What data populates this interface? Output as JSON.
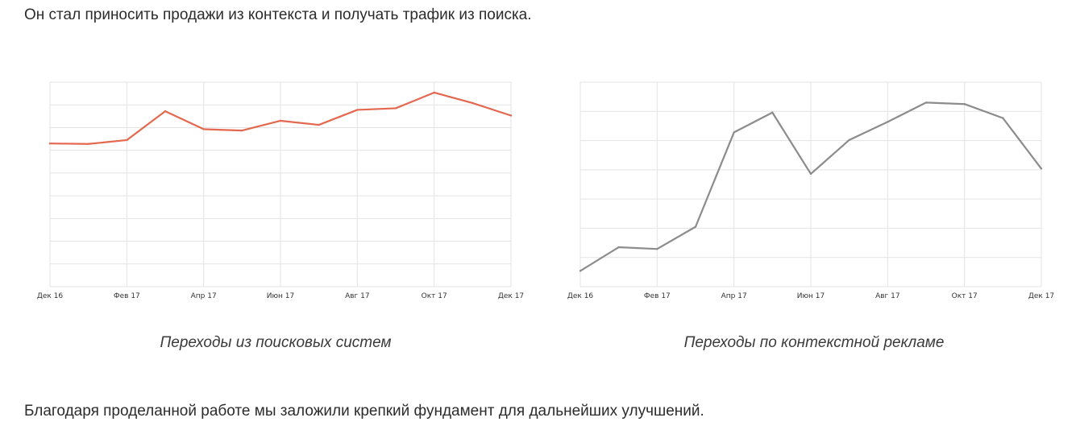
{
  "text": {
    "intro": "Он стал приносить продажи из контекста и получать трафик из поиска.",
    "outro": "Благодаря проделанной работе мы заложили крепкий фундамент для дальнейших улучшений."
  },
  "chart_data": [
    {
      "type": "line",
      "caption": "Переходы из поисковых систем",
      "x": [
        "Дек 16",
        "Янв 17",
        "Фев 17",
        "Мар 17",
        "Апр 17",
        "Май 17",
        "Июн 17",
        "Июл 17",
        "Авг 17",
        "Сен 17",
        "Окт 17",
        "Ноя 17",
        "Дек 17"
      ],
      "tick_labels": [
        "Дек 16",
        "Фев 17",
        "Апр 17",
        "Июн 17",
        "Авг 17",
        "Окт 17",
        "Дек 17"
      ],
      "series": [
        {
          "values": [
            6.3,
            6.28,
            6.45,
            7.72,
            6.93,
            6.87,
            7.3,
            7.12,
            7.78,
            7.85,
            8.54,
            8.08,
            7.53
          ]
        }
      ],
      "ylim": [
        0,
        9
      ],
      "grid": true,
      "color": "#e4684f"
    },
    {
      "type": "line",
      "caption": "Переходы по контекстной рекламе",
      "x": [
        "Дек 16",
        "Янв 17",
        "Фев 17",
        "Мар 17",
        "Апр 17",
        "Май 17",
        "Июн 17",
        "Июл 17",
        "Авг 17",
        "Сен 17",
        "Окт 17",
        "Ноя 17",
        "Дек 17"
      ],
      "tick_labels": [
        "Дек 16",
        "Фев 17",
        "Апр 17",
        "Июн 17",
        "Авг 17",
        "Окт 17",
        "Дек 17"
      ],
      "series": [
        {
          "values": [
            0.54,
            1.35,
            1.29,
            2.05,
            5.28,
            5.96,
            3.86,
            5.02,
            5.64,
            6.3,
            6.25,
            5.77,
            4.04
          ]
        }
      ],
      "ylim": [
        0,
        7
      ],
      "grid": true,
      "color": "#8c8c8c"
    }
  ]
}
